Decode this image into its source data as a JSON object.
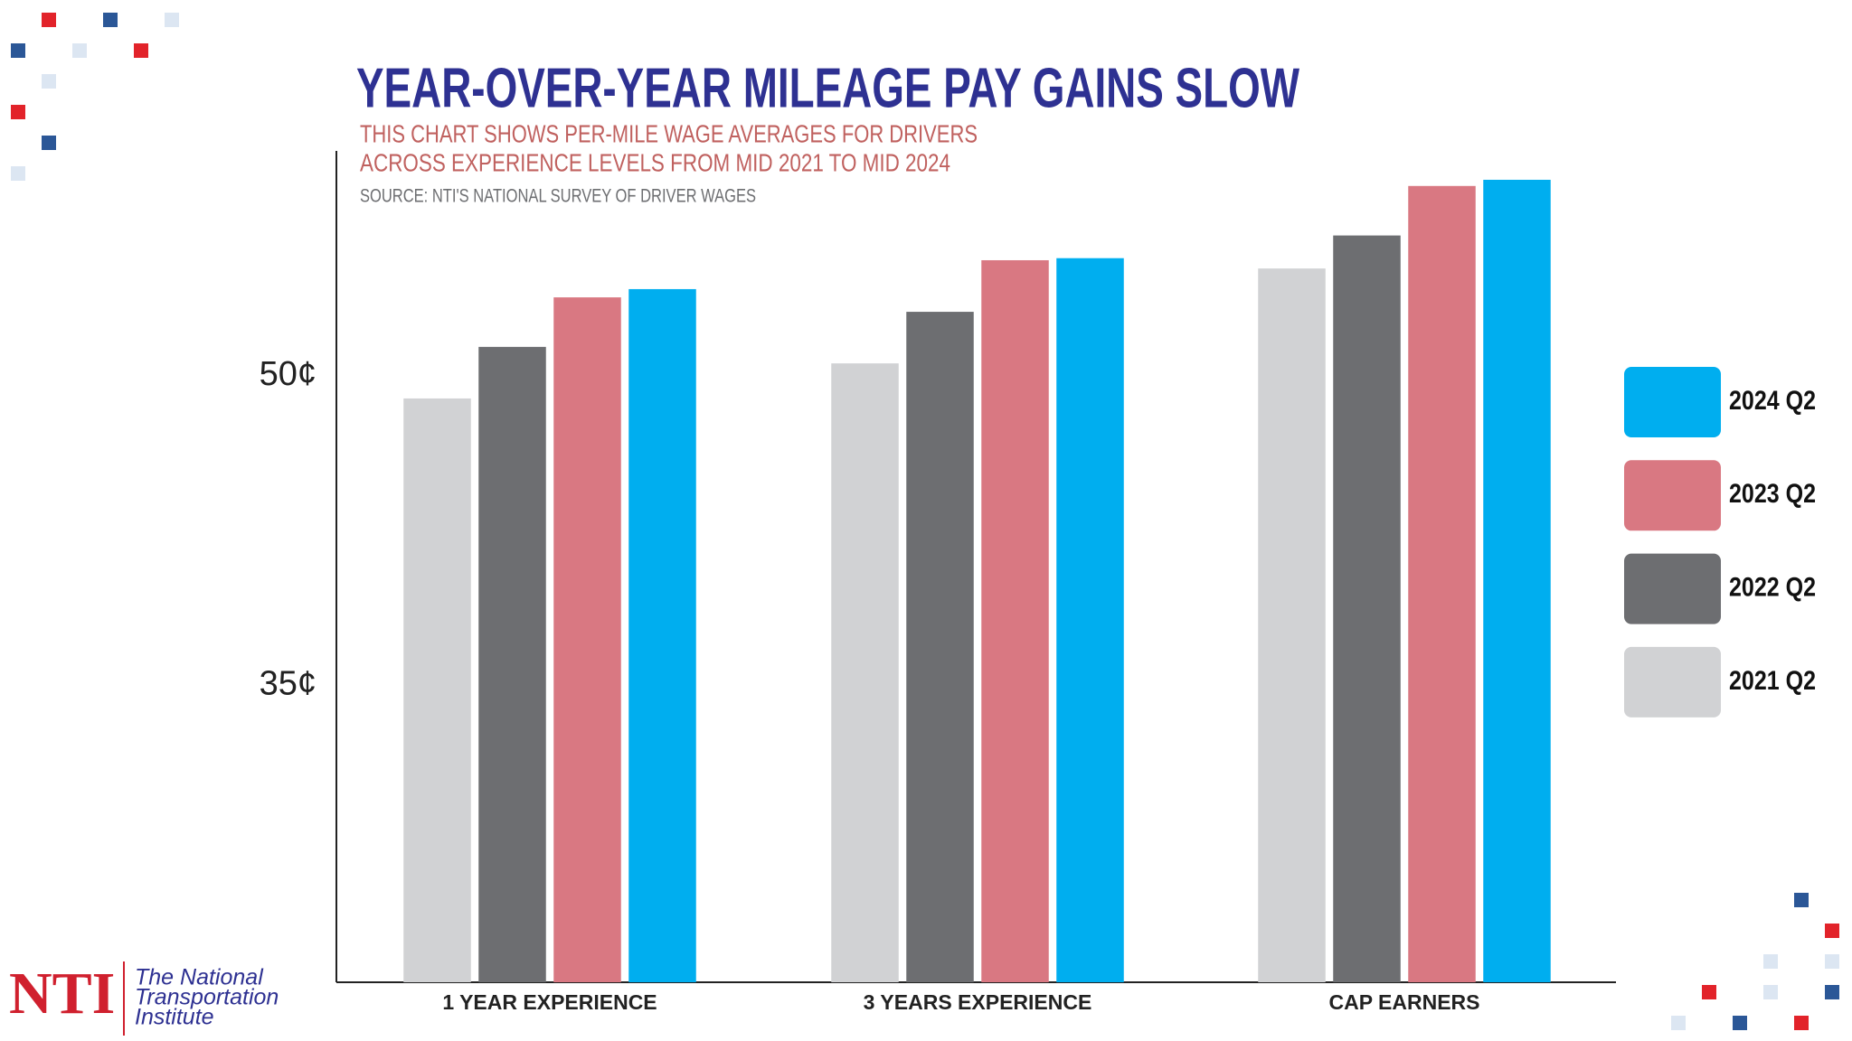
{
  "chart_data": {
    "type": "bar",
    "title": "YEAR-OVER-YEAR MILEAGE PAY GAINS SLOW",
    "subtitle": [
      "THIS CHART SHOWS PER-MILE WAGE AVERAGES FOR DRIVERS",
      "ACROSS EXPERIENCE LEVELS FROM MID 2021 TO MID 2024"
    ],
    "source": "SOURCE: NTI'S NATIONAL SURVEY OF DRIVER WAGES",
    "categories": [
      "1 YEAR EXPERIENCE",
      "3 YEARS EXPERIENCE",
      "CAP EARNERS"
    ],
    "series": [
      {
        "name": "2021 Q2",
        "color": "#d1d2d4",
        "values": [
          48.9,
          50.6,
          55.2
        ]
      },
      {
        "name": "2022 Q2",
        "color": "#6d6e71",
        "values": [
          51.4,
          53.1,
          56.8
        ]
      },
      {
        "name": "2023 Q2",
        "color": "#d97882",
        "values": [
          53.8,
          55.6,
          59.2
        ]
      },
      {
        "name": "2024 Q2",
        "color": "#00aeef",
        "values": [
          54.2,
          55.7,
          59.5
        ]
      }
    ],
    "ylim": [
      20.6,
      60.9
    ],
    "yticks": [
      {
        "value": 35,
        "label": "35¢"
      },
      {
        "value": 50,
        "label": "50¢"
      }
    ],
    "grid": false,
    "legend": "right"
  },
  "logo": {
    "mark": "NTI",
    "lines": [
      "The National",
      "Transportation",
      "Institute"
    ]
  }
}
